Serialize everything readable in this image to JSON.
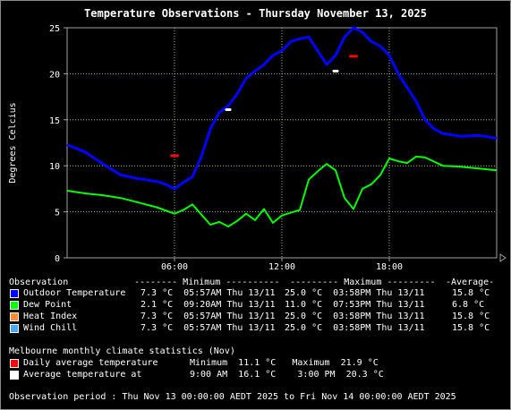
{
  "title": "Temperature Observations - Thursday November 13, 2025",
  "chart_data": {
    "type": "line",
    "ylabel": "Degrees Celcius",
    "ylim": [
      0,
      25
    ],
    "yticks": [
      "0",
      "5",
      "10",
      "15",
      "20",
      "25"
    ],
    "xlim": [
      0,
      24
    ],
    "xticks": [
      {
        "label": "06:00",
        "x": 6
      },
      {
        "label": "12:00",
        "x": 12
      },
      {
        "label": "18:00",
        "x": 18
      }
    ],
    "grid": true,
    "series": [
      {
        "name": "Outdoor Temperature",
        "color": "#0000ff",
        "x": [
          0,
          1,
          2,
          2.5,
          3,
          4,
          5,
          5.5,
          6,
          6.5,
          7,
          7.5,
          8,
          8.5,
          9,
          9.5,
          10,
          10.5,
          11,
          11.5,
          12,
          12.5,
          13,
          13.5,
          14,
          14.5,
          15,
          15.5,
          16,
          16.5,
          17,
          17.5,
          18,
          18.5,
          19,
          19.5,
          20,
          20.5,
          21,
          22,
          23,
          24
        ],
        "y": [
          12.3,
          11.5,
          10.2,
          9.6,
          9.0,
          8.6,
          8.3,
          8.0,
          7.5,
          8.2,
          8.8,
          11.0,
          14.0,
          15.8,
          16.5,
          17.8,
          19.5,
          20.3,
          21.0,
          22.0,
          22.5,
          23.5,
          23.8,
          24.0,
          22.5,
          21.0,
          22.0,
          24.0,
          25.0,
          24.5,
          23.5,
          23.0,
          22.0,
          20.0,
          18.5,
          17.0,
          15.0,
          14.0,
          13.5,
          13.2,
          13.3,
          13.0
        ]
      },
      {
        "name": "Dew Point",
        "color": "#00ff00",
        "x": [
          0,
          1,
          2,
          3,
          4,
          5,
          6,
          6.5,
          7,
          7.5,
          8,
          8.5,
          9,
          9.5,
          10,
          10.5,
          11,
          11.5,
          12,
          12.5,
          13,
          13.5,
          14,
          14.5,
          15,
          15.5,
          16,
          16.5,
          17,
          17.5,
          18,
          18.5,
          19,
          19.5,
          20,
          21,
          22,
          23,
          24
        ],
        "y": [
          7.3,
          7.0,
          6.8,
          6.5,
          6.0,
          5.5,
          4.8,
          5.2,
          5.8,
          4.7,
          3.6,
          3.9,
          3.4,
          4.0,
          4.8,
          4.1,
          5.3,
          3.8,
          4.6,
          4.9,
          5.2,
          8.5,
          9.4,
          10.2,
          9.5,
          6.5,
          5.3,
          7.5,
          8.0,
          9.0,
          10.8,
          10.5,
          10.3,
          11.0,
          10.9,
          10.0,
          9.9,
          9.7,
          9.5
        ]
      }
    ],
    "daily_average_markers": [
      {
        "x": 6.0,
        "y": 11.1,
        "color": "#ff0000"
      },
      {
        "x": 16.0,
        "y": 21.9,
        "color": "#ff0000"
      }
    ],
    "average_temperature_markers": [
      {
        "x": 9.0,
        "y": 16.1,
        "color": "#ffffff"
      },
      {
        "x": 15.0,
        "y": 20.3,
        "color": "#ffffff"
      }
    ]
  },
  "stats": {
    "header": {
      "col1": "Observation",
      "col2": "-------- Minimum ----------",
      "col3": "--------- Maximum ---------",
      "col4": "-Average-"
    },
    "rows": [
      {
        "color": "#0000ff",
        "label": "Outdoor Temperature",
        "min": "7.3 °C  05:57AM Thu 13/11",
        "max": "25.0 °C  03:58PM Thu 13/11",
        "avg": "15.8 °C"
      },
      {
        "color": "#00ff00",
        "label": "Dew Point",
        "min": "2.1 °C  09:20AM Thu 13/11",
        "max": "11.0 °C  07:53PM Thu 13/11",
        "avg": "6.8 °C"
      },
      {
        "color": "#ff8c3a",
        "label": "Heat Index",
        "min": "7.3 °C  05:57AM Thu 13/11",
        "max": "25.0 °C  03:58PM Thu 13/11",
        "avg": "15.8 °C"
      },
      {
        "color": "#4aa8ff",
        "label": "Wind Chill",
        "min": "7.3 °C  05:57AM Thu 13/11",
        "max": "25.0 °C  03:58PM Thu 13/11",
        "avg": "15.8 °C"
      }
    ]
  },
  "climate": {
    "title": "Melbourne monthly climate statistics (Nov)",
    "rows": [
      {
        "color": "#ff0000",
        "label": "Daily average temperature",
        "text": "Minimum  11.1 °C   Maximum  21.9 °C"
      },
      {
        "color": "#ffffff",
        "label": "Average temperature at",
        "text": "9:00 AM  16.1 °C    3:00 PM  20.3 °C"
      }
    ]
  },
  "period": "Observation period : Thu Nov 13 00:00:00 AEDT 2025 to Fri Nov 14 00:00:00 AEDT 2025"
}
